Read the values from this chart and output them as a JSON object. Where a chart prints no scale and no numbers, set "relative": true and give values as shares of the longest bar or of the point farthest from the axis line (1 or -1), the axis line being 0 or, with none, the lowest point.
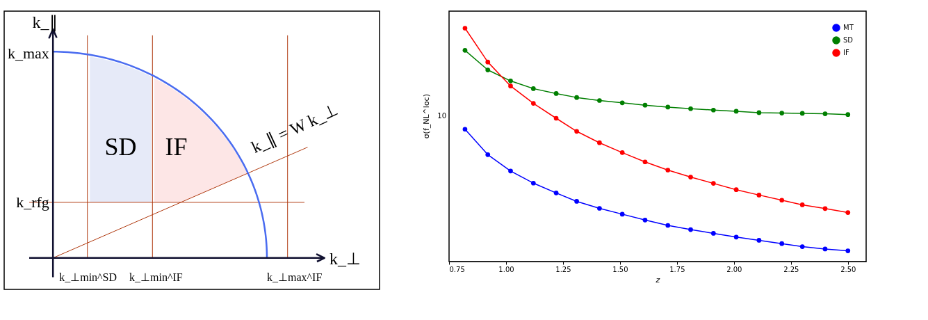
{
  "chart_data": [
    {
      "type": "other",
      "annotations": [
        "k_∥",
        "k_max",
        "k_rfg",
        "k_⊥",
        "k_⊥min^SD",
        "k_⊥min^IF",
        "k_⊥max^IF",
        "SD",
        "IF",
        "k_∥ = W k_⊥"
      ]
    },
    {
      "type": "line",
      "xlabel": "z",
      "ylabel": "σ(f_NL^loc)",
      "relative": true,
      "legend": "top right",
      "marker": "circle",
      "grid": false,
      "annotations": [
        "10"
      ],
      "x": [
        0.82,
        0.92,
        1.02,
        1.12,
        1.22,
        1.31,
        1.41,
        1.51,
        1.61,
        1.71,
        1.81,
        1.91,
        2.01,
        2.11,
        2.21,
        2.3,
        2.4,
        2.5
      ],
      "xlim": [
        0.75,
        2.58
      ],
      "xticks": [
        {
          "value": 0.75,
          "label": "0.75"
        },
        {
          "value": 1.0,
          "label": "1.00"
        },
        {
          "value": 1.25,
          "label": "1.25"
        },
        {
          "value": 1.5,
          "label": "1.50"
        },
        {
          "value": 1.75,
          "label": "1.75"
        },
        {
          "value": 2.0,
          "label": "2.00"
        },
        {
          "value": 2.25,
          "label": "2.25"
        },
        {
          "value": 2.5,
          "label": "2.50"
        }
      ],
      "series": [
        {
          "name": "MT",
          "color": "#0000ff",
          "values": [
            0.567,
            0.458,
            0.388,
            0.336,
            0.294,
            0.258,
            0.228,
            0.203,
            0.178,
            0.155,
            0.137,
            0.121,
            0.105,
            0.091,
            0.077,
            0.064,
            0.054,
            0.046
          ]
        },
        {
          "name": "SD",
          "color": "#007f00",
          "values": [
            0.905,
            0.821,
            0.774,
            0.741,
            0.72,
            0.703,
            0.69,
            0.68,
            0.67,
            0.662,
            0.655,
            0.649,
            0.644,
            0.638,
            0.636,
            0.635,
            0.633,
            0.63
          ]
        },
        {
          "name": "IF",
          "color": "#ff0000",
          "values": [
            1,
            0.855,
            0.752,
            0.678,
            0.614,
            0.558,
            0.509,
            0.467,
            0.427,
            0.392,
            0.362,
            0.335,
            0.308,
            0.285,
            0.263,
            0.243,
            0.227,
            0.21
          ]
        }
      ]
    }
  ]
}
